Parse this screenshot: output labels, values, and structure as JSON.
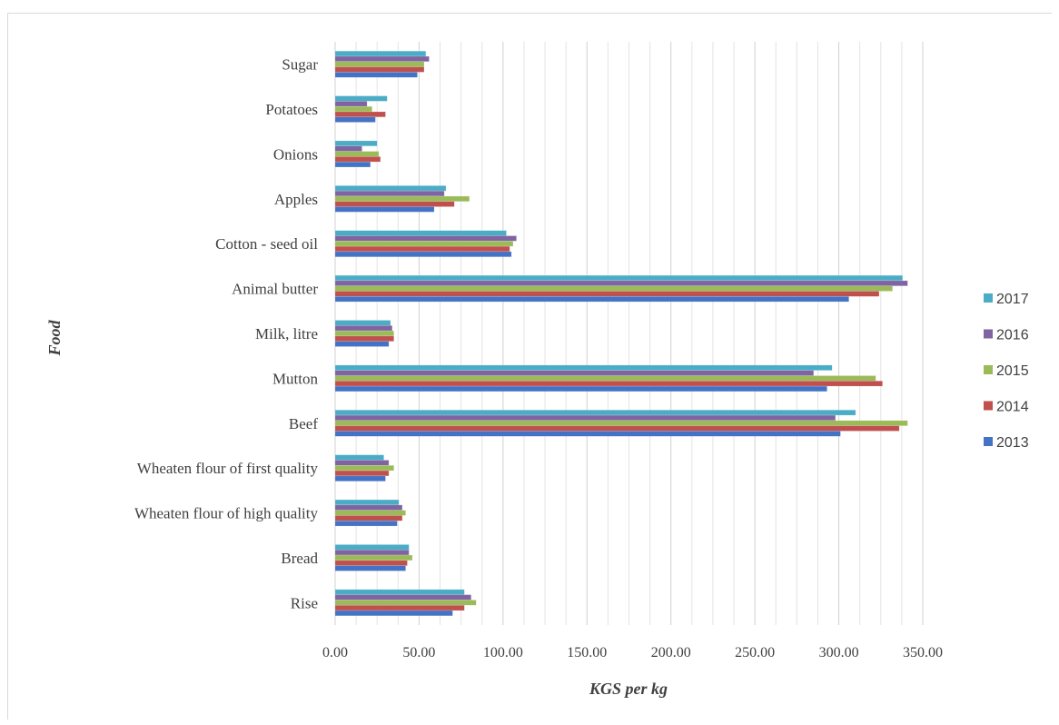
{
  "chart_data": {
    "type": "bar",
    "orientation": "horizontal",
    "title": "",
    "xlabel": "KGS per kg",
    "ylabel": "Food",
    "xlim": [
      0,
      350
    ],
    "x_ticks": [
      "0.00",
      "50.00",
      "100.00",
      "150.00",
      "200.00",
      "250.00",
      "300.00",
      "350.00"
    ],
    "x_tick_values": [
      0,
      50,
      100,
      150,
      200,
      250,
      300,
      350
    ],
    "grid": "vertical",
    "legend_position": "right",
    "categories": [
      "Rise",
      "Bread",
      "Wheaten flour of high quality",
      "Wheaten flour of first quality",
      "Beef",
      "Mutton",
      "Milk, litre",
      "Animal butter",
      "Cotton - seed oil",
      "Apples",
      "Onions",
      "Potatoes",
      "Sugar"
    ],
    "series": [
      {
        "name": "2013",
        "color": "#4472c4",
        "values": [
          70,
          42,
          37,
          30,
          301,
          293,
          32,
          306,
          105,
          59,
          21,
          24,
          49
        ]
      },
      {
        "name": "2014",
        "color": "#c0504d",
        "values": [
          77,
          43,
          40,
          32,
          336,
          326,
          35,
          324,
          104,
          71,
          27,
          30,
          53
        ]
      },
      {
        "name": "2015",
        "color": "#9bbb59",
        "values": [
          84,
          46,
          42,
          35,
          341,
          322,
          35,
          332,
          106,
          80,
          26,
          22,
          53
        ]
      },
      {
        "name": "2016",
        "color": "#8064a2",
        "values": [
          81,
          44,
          40,
          32,
          298,
          285,
          34,
          341,
          108,
          65,
          16,
          19,
          56
        ]
      },
      {
        "name": "2017",
        "color": "#4bacc6",
        "values": [
          77,
          44,
          38,
          29,
          310,
          296,
          33,
          338,
          102,
          66,
          25,
          31,
          54
        ]
      }
    ]
  }
}
